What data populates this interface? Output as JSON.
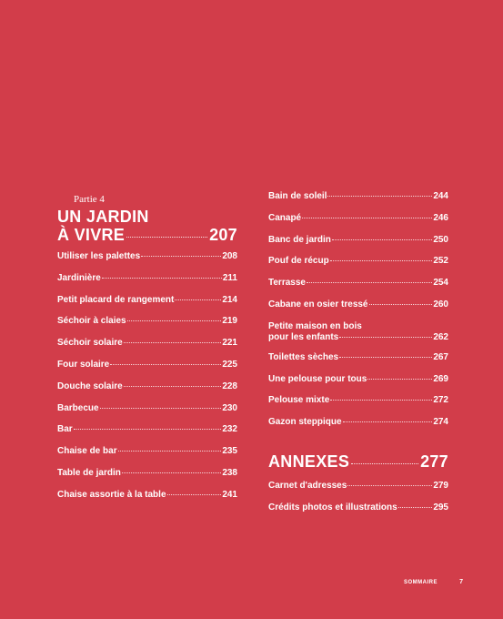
{
  "part": {
    "label": "Partie 4",
    "title_line1": "UN JARDIN",
    "title_line2": "À VIVRE",
    "page": "207"
  },
  "left_entries": [
    {
      "label": "Utiliser les palettes",
      "page": "208"
    },
    {
      "label": "Jardinière",
      "page": "211"
    },
    {
      "label": "Petit placard de rangement",
      "page": "214"
    },
    {
      "label": "Séchoir à claies",
      "page": "219"
    },
    {
      "label": "Séchoir solaire",
      "page": "221"
    },
    {
      "label": "Four solaire",
      "page": "225"
    },
    {
      "label": "Douche solaire",
      "page": "228"
    },
    {
      "label": "Barbecue",
      "page": "230"
    },
    {
      "label": "Bar",
      "page": "232"
    },
    {
      "label": "Chaise de bar",
      "page": "235"
    },
    {
      "label": "Table de jardin",
      "page": "238"
    },
    {
      "label": "Chaise assortie à la table",
      "page": "241"
    }
  ],
  "right_entries_a": [
    {
      "label": "Bain de soleil",
      "page": "244"
    },
    {
      "label": "Canapé",
      "page": "246"
    },
    {
      "label": "Banc de jardin",
      "page": "250"
    },
    {
      "label": "Pouf de récup",
      "page": "252"
    },
    {
      "label": "Terrasse",
      "page": "254"
    },
    {
      "label": "Cabane en osier tressé",
      "page": "260"
    }
  ],
  "right_two_line": {
    "line1": "Petite maison en bois",
    "line2": "pour les enfants",
    "page": "262"
  },
  "right_entries_b": [
    {
      "label": "Toilettes sèches",
      "page": "267"
    },
    {
      "label": "Une pelouse pour tous",
      "page": "269"
    },
    {
      "label": "Pelouse mixte",
      "page": "272"
    },
    {
      "label": "Gazon steppique",
      "page": "274"
    }
  ],
  "annexes": {
    "title": "ANNEXES",
    "page": "277"
  },
  "annex_entries": [
    {
      "label": "Carnet d'adresses",
      "page": "279"
    },
    {
      "label": "Crédits photos et illustrations",
      "page": "295"
    }
  ],
  "footer": {
    "section": "SOMMAIRE",
    "page": "7"
  },
  "colors": {
    "background": "#d23d4a",
    "text": "#ffffff"
  }
}
